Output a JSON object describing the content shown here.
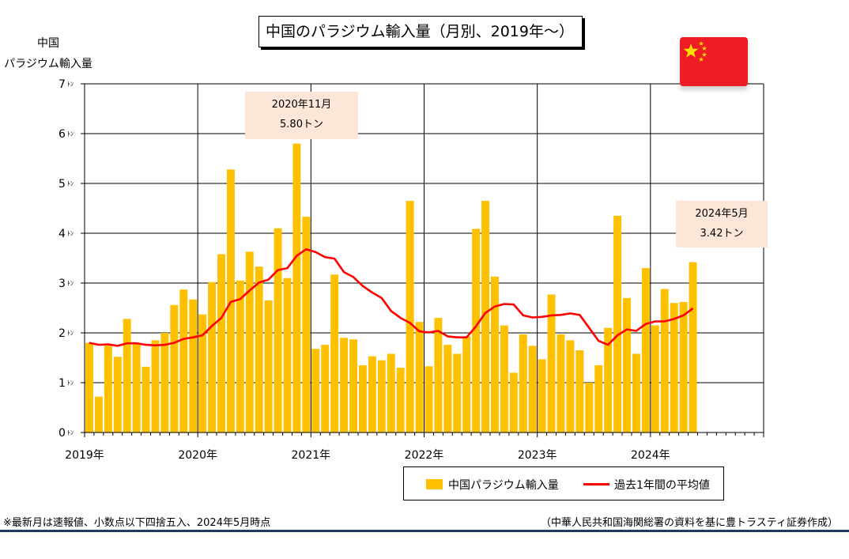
{
  "title": "中国のパラジウム輸入量（月別、2019年～）",
  "y_axis_title_lines": [
    "中国",
    "パラジウム輸入量"
  ],
  "callouts": [
    {
      "line1": "2020年11月",
      "line2": "5.80トン"
    },
    {
      "line1": "2024年5月",
      "line2": "3.42トン"
    }
  ],
  "legend": {
    "bar_label": "中国パラジウム輸入量",
    "line_label": "過去1年間の平均値"
  },
  "notes": {
    "left": "※最新月は速報値、小数点以下四捨五入、2024年5月時点",
    "right": "（中華人民共和国海関総署の資料を基に豊トラスティ証券作成）"
  },
  "flag_icon": "china-flag-icon",
  "colors": {
    "bar": "#ffc000",
    "line": "#ff0000",
    "callout_bg": "#fbe6d8",
    "flag": "#ee1c25",
    "star": "#ffde00",
    "rule": "#1f3864"
  },
  "chart_data": {
    "type": "bar",
    "title": "中国のパラジウム輸入量（月別、2019年～）",
    "ylabel": "中国 パラジウム輸入量",
    "y_unit": "ﾄﾝ",
    "ylim": [
      0,
      7
    ],
    "y_ticks": [
      0,
      1,
      2,
      3,
      4,
      5,
      6,
      7
    ],
    "x_tick_labels": [
      "2019年",
      "2020年",
      "2021年",
      "2022年",
      "2023年",
      "2024年"
    ],
    "x_months_total": 72,
    "grid": true,
    "legend_position": "bottom",
    "series": [
      {
        "name": "中国パラジウム輸入量",
        "type": "bar",
        "start": "2019-01",
        "values": [
          1.8,
          0.72,
          1.75,
          1.52,
          2.28,
          1.78,
          1.32,
          1.85,
          2.0,
          2.56,
          2.87,
          2.67,
          2.37,
          3.02,
          3.58,
          5.28,
          3.05,
          3.63,
          3.33,
          2.65,
          4.1,
          3.1,
          5.8,
          4.33,
          1.68,
          1.76,
          3.17,
          1.9,
          1.87,
          1.35,
          1.53,
          1.45,
          1.58,
          1.3,
          4.65,
          2.22,
          1.33,
          2.3,
          1.76,
          1.58,
          1.93,
          4.09,
          4.65,
          3.13,
          2.15,
          1.2,
          1.97,
          1.74,
          1.47,
          2.77,
          1.97,
          1.85,
          1.65,
          1.0,
          1.35,
          2.1,
          4.35,
          2.7,
          1.58,
          3.3,
          2.15,
          2.88,
          2.6,
          2.62,
          3.42
        ]
      },
      {
        "name": "過去1年間の平均値",
        "type": "line",
        "start": "2019-01",
        "values": [
          1.8,
          1.76,
          1.77,
          1.74,
          1.79,
          1.79,
          1.76,
          1.75,
          1.76,
          1.8,
          1.88,
          1.91,
          1.95,
          2.14,
          2.3,
          2.62,
          2.68,
          2.85,
          3.01,
          3.07,
          3.26,
          3.3,
          3.55,
          3.68,
          3.62,
          3.52,
          3.49,
          3.22,
          3.12,
          2.94,
          2.81,
          2.7,
          2.44,
          2.3,
          2.2,
          2.03,
          2.01,
          2.04,
          1.93,
          1.91,
          1.91,
          2.13,
          2.4,
          2.53,
          2.58,
          2.57,
          2.35,
          2.31,
          2.32,
          2.35,
          2.36,
          2.39,
          2.36,
          2.1,
          1.84,
          1.76,
          1.95,
          2.07,
          2.04,
          2.18,
          2.23,
          2.23,
          2.28,
          2.35,
          2.49
        ]
      }
    ]
  }
}
